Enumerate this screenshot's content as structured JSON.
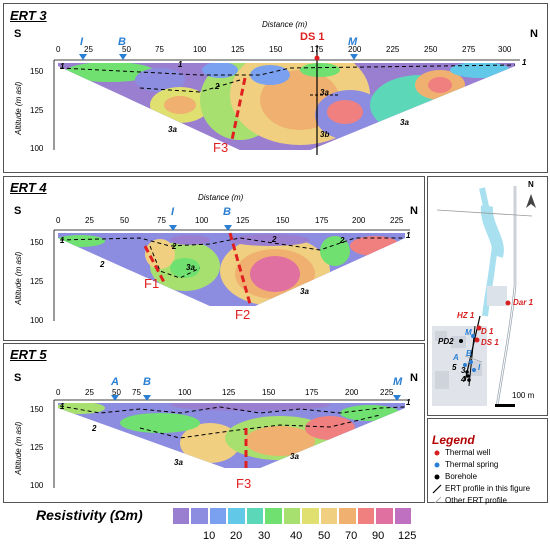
{
  "ert3": {
    "title": "ERT 3",
    "left_dir": "S",
    "right_dir": "N",
    "xlabel": "Distance (m)",
    "ylabel": "Altitude (m asl)",
    "xticks": [
      "0",
      "25",
      "50",
      "75",
      "100",
      "125",
      "150",
      "175",
      "200",
      "225",
      "250",
      "275",
      "300"
    ],
    "yticks": [
      "150",
      "125",
      "100"
    ],
    "markers": [
      {
        "label": "I",
        "color": "#2a7fd4"
      },
      {
        "label": "B",
        "color": "#2a7fd4"
      },
      {
        "label": "M",
        "color": "#2a7fd4"
      }
    ],
    "well_label": "DS 1",
    "fault": "F3",
    "units": [
      "1",
      "1",
      "2",
      "3a",
      "3a",
      "3a",
      "3b",
      "1"
    ]
  },
  "ert4": {
    "title": "ERT 4",
    "left_dir": "S",
    "right_dir": "N",
    "xlabel": "Distance (m)",
    "ylabel": "Altitude (m asl)",
    "xticks": [
      "0",
      "25",
      "50",
      "75",
      "100",
      "125",
      "150",
      "175",
      "200",
      "225"
    ],
    "yticks": [
      "150",
      "125",
      "100"
    ],
    "markers": [
      {
        "label": "I",
        "color": "#2a7fd4"
      },
      {
        "label": "B",
        "color": "#2a7fd4"
      }
    ],
    "faults": [
      "F1",
      "F2"
    ],
    "units": [
      "1",
      "2",
      "2",
      "3a",
      "2",
      "2",
      "3a",
      "1"
    ]
  },
  "ert5": {
    "title": "ERT 5",
    "left_dir": "S",
    "right_dir": "N",
    "xlabel": "",
    "ylabel": "Altitude (m asl)",
    "xticks": [
      "0",
      "25",
      "50",
      "75",
      "100",
      "125",
      "150",
      "175",
      "200",
      "225"
    ],
    "yticks": [
      "150",
      "125",
      "100"
    ],
    "markers": [
      {
        "label": "A",
        "color": "#2a7fd4"
      },
      {
        "label": "B",
        "color": "#2a7fd4"
      },
      {
        "label": "M",
        "color": "#2a7fd4"
      }
    ],
    "fault": "F3",
    "units": [
      "1",
      "2",
      "3a",
      "3a",
      "1"
    ]
  },
  "resistivity": {
    "title": "Resistivity (Ωm)",
    "values": [
      "10",
      "20",
      "30",
      "40",
      "50",
      "70",
      "90",
      "125"
    ],
    "colors": [
      "#9a7fd0",
      "#8c8ce0",
      "#7aa0f0",
      "#62c8e8",
      "#5cd8b8",
      "#70e070",
      "#a8e070",
      "#e0e070",
      "#f0d080",
      "#f0b070",
      "#f08080",
      "#e070a0",
      "#c070c0"
    ]
  },
  "map": {
    "north": "N",
    "scale": "100 m",
    "labels": {
      "dar1": "Dar 1",
      "hz1": "HZ 1",
      "d1": "D 1",
      "ds1": "DS 1",
      "m": "M",
      "pd2": "PD2",
      "a": "A",
      "b": "B",
      "i": "I",
      "n5": "5",
      "n3": "3",
      "n4": "4"
    }
  },
  "legend": {
    "title": "Legend",
    "items": [
      {
        "label": "Thermal well",
        "color": "#d62020"
      },
      {
        "label": "Thermal spring",
        "color": "#2a7fd4"
      },
      {
        "label": "Borehole",
        "color": "#000000"
      },
      {
        "label": "ERT profile in this figure",
        "color": "#000000"
      },
      {
        "label": "Other ERT profile",
        "color": "#aaaaaa"
      }
    ]
  }
}
